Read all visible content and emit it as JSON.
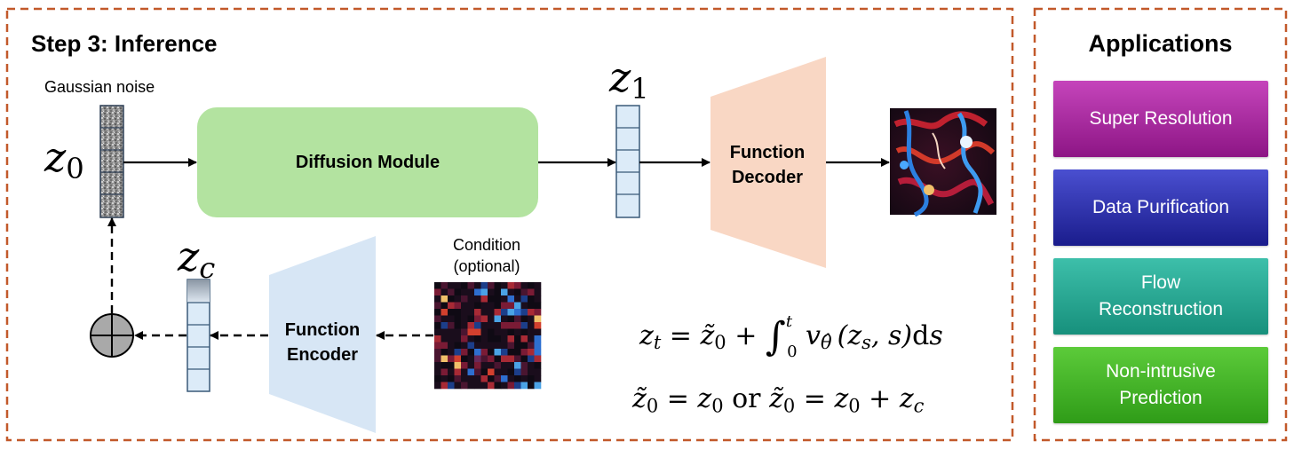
{
  "step_title": "Step 3: Inference",
  "noise_label": "Gaussian noise",
  "condition_label": "Condition\n(optional)",
  "z0_symbol": "z",
  "z0_sub": "0",
  "z1_symbol": "z",
  "z1_sub": "1",
  "zc_symbol": "z",
  "zc_sub": "c",
  "modules": {
    "diffusion": "Diffusion Module",
    "decoder": "Function\nDecoder",
    "encoder": "Function\nEncoder"
  },
  "equations": {
    "eq1_lhs": "z",
    "eq1_lhs_sub": "t",
    "eq1_eq": " = ",
    "eq1_ztilde": "z̃",
    "eq1_ztilde_sub": "0",
    "eq1_plus": " + ",
    "eq1_int": "∫",
    "eq1_upper": "t",
    "eq1_lower": "0",
    "eq1_v": " v",
    "eq1_v_sub": "θ̂",
    "eq1_args_open": "(z",
    "eq1_args_s": "s",
    "eq1_args_close": ", s)",
    "eq1_d": "d",
    "eq1_ds": "s",
    "eq2_a": "z̃",
    "eq2_a_sub": "0",
    "eq2_eq1": " = z",
    "eq2_b_sub": "0",
    "eq2_or": " or ",
    "eq2_c": "z̃",
    "eq2_c_sub": "0",
    "eq2_eq2": " = z",
    "eq2_d_sub": "0",
    "eq2_plus": " + z",
    "eq2_e_sub": "c"
  },
  "applications_title": "Applications",
  "applications": [
    {
      "label": "Super Resolution",
      "color_top": "#c545bb",
      "color_bottom": "#8d1585"
    },
    {
      "label": "Data Purification",
      "color_top": "#4a4fd0",
      "color_bottom": "#1a1c8c"
    },
    {
      "label": "Flow\nReconstruction",
      "color_top": "#3dbfaa",
      "color_bottom": "#17907c"
    },
    {
      "label": "Non-intrusive\nPrediction",
      "color_top": "#5ccb3a",
      "color_bottom": "#2f9c18"
    }
  ],
  "colors": {
    "dashed_border": "#c2592a",
    "diffusion_fill": "#b3e3a0",
    "decoder_fill": "#f9d7c4",
    "encoder_fill": "#d7e6f5",
    "latent_fill": "#dcebf8",
    "latent_border": "#3a5a78"
  }
}
